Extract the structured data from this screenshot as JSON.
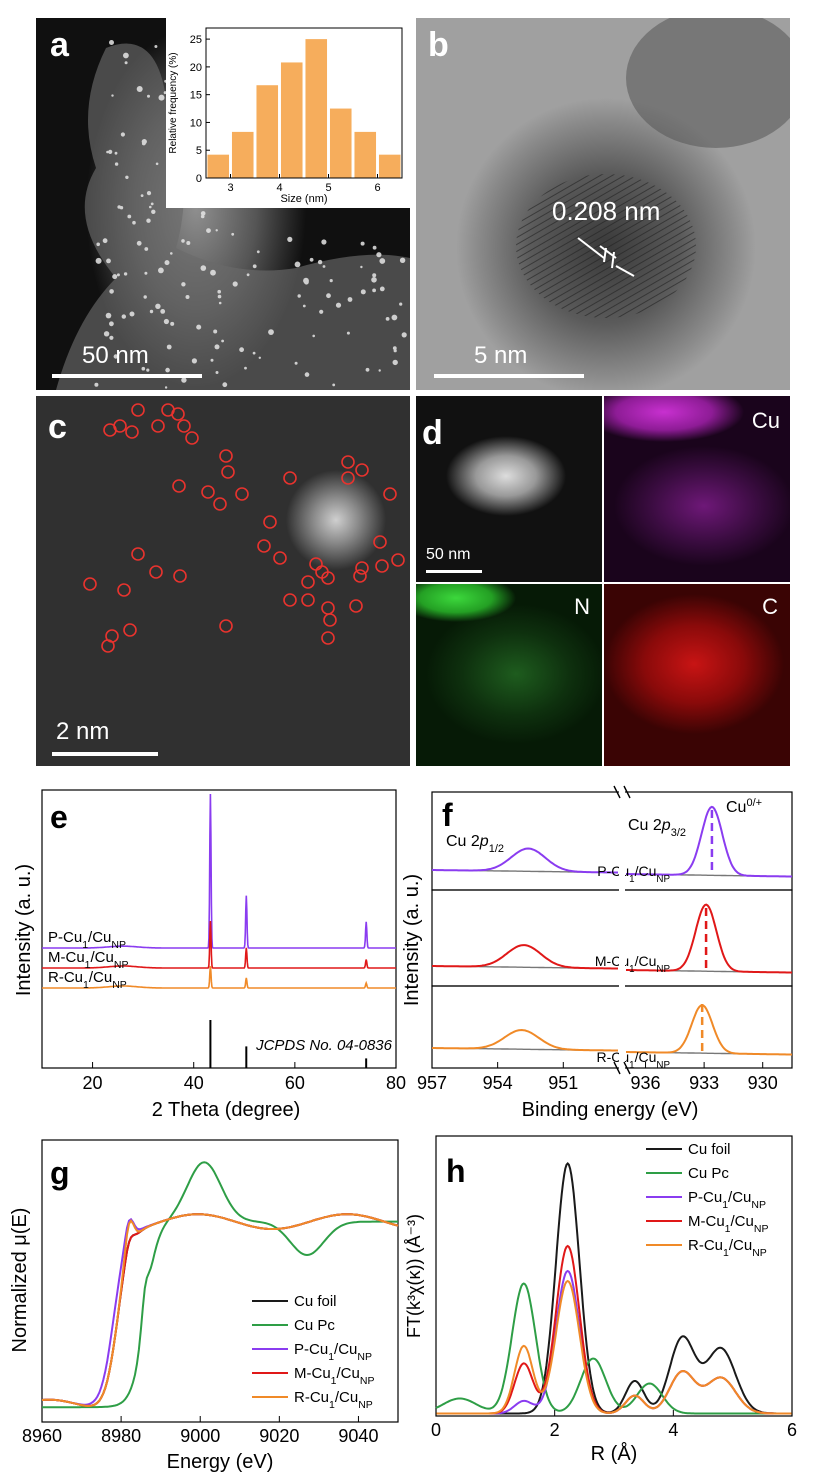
{
  "panels": {
    "a": {
      "label": "a",
      "scale": "50 nm",
      "inset": {
        "xlabel": "Size (nm)",
        "ylabel": "Relative frequency (%)",
        "xticks": [
          "3",
          "4",
          "5",
          "6"
        ],
        "yticks": [
          "0",
          "5",
          "10",
          "15",
          "20",
          "25"
        ]
      }
    },
    "b": {
      "label": "b",
      "scale": "5 nm",
      "annotation": "0.208 nm"
    },
    "c": {
      "label": "c",
      "scale": "2 nm"
    },
    "d": {
      "label": "d",
      "scale": "50 nm",
      "maps": [
        "Cu",
        "N",
        "C"
      ]
    },
    "e": {
      "label": "e",
      "xlabel": "2 Theta (degree)",
      "ylabel": "Intensity (a. u.)",
      "xticks": [
        "20",
        "40",
        "60",
        "80"
      ],
      "reference": "JCPDS No. 04-0836"
    },
    "f": {
      "label": "f",
      "xlabel": "Binding energy (eV)",
      "ylabel": "Intensity (a. u.)",
      "xticks": [
        "957",
        "954",
        "951",
        "936",
        "933",
        "930"
      ],
      "peak_half": "Cu 2p1/2",
      "peak_three_half": "Cu 2p3/2",
      "state": "Cu0/+"
    },
    "g": {
      "label": "g",
      "xlabel": "Energy (eV)",
      "ylabel": "Normalized μ(E)",
      "xticks": [
        "8960",
        "8980",
        "9000",
        "9020",
        "9040"
      ]
    },
    "h": {
      "label": "h",
      "xlabel": "R (Å)",
      "ylabel": "FT(k³χ(κ)) (Å⁻³)",
      "xticks": [
        "0",
        "2",
        "4",
        "6"
      ]
    }
  },
  "legend": {
    "cu_foil": "Cu foil",
    "cu_pc": "Cu Pc",
    "samples": [
      {
        "main": "P-Cu",
        "sub1": "1",
        "mid": "/Cu",
        "sub2": "NP"
      },
      {
        "main": "M-Cu",
        "sub1": "1",
        "mid": "/Cu",
        "sub2": "NP"
      },
      {
        "main": "R-Cu",
        "sub1": "1",
        "mid": "/Cu",
        "sub2": "NP"
      }
    ]
  },
  "colors": {
    "cu_foil": "#1a1a1a",
    "cu_pc": "#2e9e46",
    "P": "#8a3cf0",
    "M": "#e01818",
    "R": "#f08a28",
    "bar": "#f6ad5c"
  },
  "chart_data": [
    {
      "type": "bar",
      "panel": "a-inset",
      "xlabel": "Size (nm)",
      "ylabel": "Relative frequency (%)",
      "categories": [
        2.75,
        3.25,
        3.75,
        4.25,
        4.75,
        5.25,
        5.75,
        6.25
      ],
      "values": [
        4.2,
        8.3,
        16.7,
        20.8,
        25.0,
        12.5,
        8.3,
        4.2
      ],
      "xlim": [
        2.5,
        6.5
      ],
      "ylim": [
        0,
        27
      ]
    },
    {
      "type": "line",
      "panel": "e",
      "xlabel": "2 Theta (degree)",
      "ylabel": "Intensity (a. u.)",
      "xlim": [
        10,
        80
      ],
      "series": [
        {
          "name": "P-Cu1/CuNP",
          "peaks": [
            [
              43.3,
              1.0
            ],
            [
              50.4,
              0.34
            ],
            [
              74.1,
              0.17
            ]
          ]
        },
        {
          "name": "M-Cu1/CuNP",
          "peaks": [
            [
              43.3,
              0.28
            ],
            [
              50.4,
              0.12
            ],
            [
              74.1,
              0.05
            ]
          ]
        },
        {
          "name": "R-Cu1/CuNP",
          "peaks": [
            [
              43.3,
              0.13
            ],
            [
              50.4,
              0.06
            ],
            [
              74.1,
              0.03
            ]
          ]
        }
      ],
      "reference_lines": [
        [
          43.3,
          1.0
        ],
        [
          50.4,
          0.45
        ],
        [
          74.1,
          0.2
        ]
      ]
    },
    {
      "type": "line",
      "panel": "f",
      "xlabel": "Binding energy (eV)",
      "ylabel": "Intensity (a. u.)",
      "x_segments": [
        [
          957,
          948.5
        ],
        [
          937,
          928.5
        ]
      ],
      "peaks": [
        {
          "name": "P-Cu1/CuNP",
          "p_half": 952.6,
          "p_three_half": 932.6
        },
        {
          "name": "M-Cu1/CuNP",
          "p_half": 952.8,
          "p_three_half": 932.9
        },
        {
          "name": "R-Cu1/CuNP",
          "p_half": 952.9,
          "p_three_half": 933.1
        }
      ]
    },
    {
      "type": "line",
      "panel": "g",
      "xlabel": "Energy (eV)",
      "ylabel": "Normalized μ(E)",
      "xlim": [
        8960,
        9050
      ],
      "series": [
        {
          "name": "Cu foil",
          "edge": 8979,
          "white": 1.0
        },
        {
          "name": "Cu Pc",
          "edge": 8986,
          "white": 1.32
        },
        {
          "name": "P-Cu1/CuNP",
          "edge": 8978,
          "white": 1.0
        },
        {
          "name": "M-Cu1/CuNP",
          "edge": 8979,
          "white": 1.0
        },
        {
          "name": "R-Cu1/CuNP",
          "edge": 8979,
          "white": 1.0
        }
      ]
    },
    {
      "type": "line",
      "panel": "h",
      "xlabel": "R (Å)",
      "ylabel": "FT(k³χ(κ)) (Å⁻³)",
      "xlim": [
        0,
        6
      ],
      "series": [
        {
          "name": "Cu foil",
          "main_peak": [
            2.22,
            1.0
          ]
        },
        {
          "name": "Cu Pc",
          "main_peak": [
            1.48,
            0.52
          ]
        },
        {
          "name": "P-Cu1/CuNP",
          "main_peak": [
            2.22,
            0.57
          ]
        },
        {
          "name": "M-Cu1/CuNP",
          "main_peak": [
            2.22,
            0.67
          ]
        },
        {
          "name": "R-Cu1/CuNP",
          "main_peak": [
            2.22,
            0.53
          ]
        }
      ]
    }
  ]
}
